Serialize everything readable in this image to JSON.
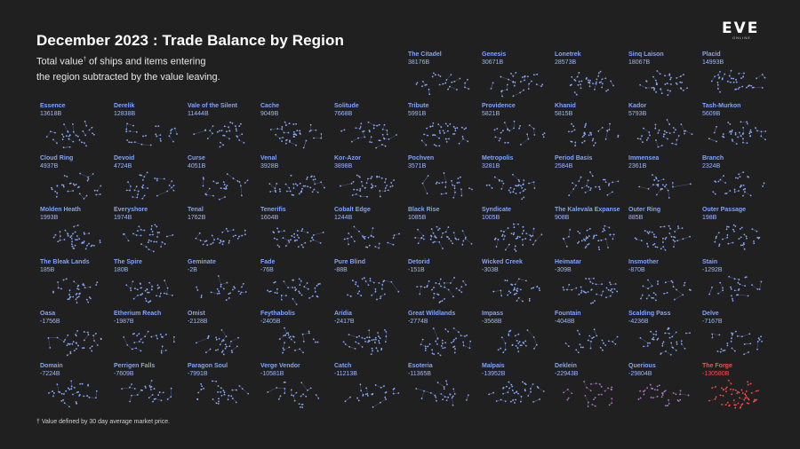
{
  "header": {
    "title": "December 2023 : Trade Balance by Region",
    "subtitle_line1_pre": "Total value",
    "subtitle_sup": "†",
    "subtitle_line1_post": " of ships and items entering",
    "subtitle_line2": "the region subtracted by the value leaving."
  },
  "logo": {
    "text": "EVE",
    "subtext": "ONLINE"
  },
  "footnote": "† Value defined by 30 day average market price.",
  "colors": {
    "background": "#202020",
    "positive_label": "#7fa3ff",
    "node_positive": "#8aa8ff",
    "node_negative_strong": "#b07acc",
    "highlight": "#ff4d4d"
  },
  "chart_data": {
    "type": "small_multiples",
    "unit": "B ISK",
    "regions": [
      {
        "name": "The Citadel",
        "label": "38176B",
        "value": 38176
      },
      {
        "name": "Genesis",
        "label": "30671B",
        "value": 30671
      },
      {
        "name": "Lonetrek",
        "label": "28573B",
        "value": 28573
      },
      {
        "name": "Sinq Laison",
        "label": "18067B",
        "value": 18067
      },
      {
        "name": "Placid",
        "label": "14993B",
        "value": 14993
      },
      {
        "name": "Essence",
        "label": "13618B",
        "value": 13618
      },
      {
        "name": "Derelik",
        "label": "12838B",
        "value": 12838
      },
      {
        "name": "Vale of the Silent",
        "label": "11444B",
        "value": 11444
      },
      {
        "name": "Cache",
        "label": "9049B",
        "value": 9049
      },
      {
        "name": "Solitude",
        "label": "7668B",
        "value": 7668
      },
      {
        "name": "Tribute",
        "label": "5991B",
        "value": 5991
      },
      {
        "name": "Providence",
        "label": "5821B",
        "value": 5821
      },
      {
        "name": "Khanid",
        "label": "5815B",
        "value": 5815
      },
      {
        "name": "Kador",
        "label": "5793B",
        "value": 5793
      },
      {
        "name": "Tash-Murkon",
        "label": "5609B",
        "value": 5609
      },
      {
        "name": "Cloud Ring",
        "label": "4937B",
        "value": 4937
      },
      {
        "name": "Devoid",
        "label": "4724B",
        "value": 4724
      },
      {
        "name": "Curse",
        "label": "4051B",
        "value": 4051
      },
      {
        "name": "Venal",
        "label": "3928B",
        "value": 3928
      },
      {
        "name": "Kor-Azor",
        "label": "3898B",
        "value": 3898
      },
      {
        "name": "Pochven",
        "label": "3571B",
        "value": 3571
      },
      {
        "name": "Metropolis",
        "label": "3281B",
        "value": 3281
      },
      {
        "name": "Period Basis",
        "label": "2584B",
        "value": 2584
      },
      {
        "name": "Immensea",
        "label": "2361B",
        "value": 2361
      },
      {
        "name": "Branch",
        "label": "2324B",
        "value": 2324
      },
      {
        "name": "Molden Heath",
        "label": "1993B",
        "value": 1993
      },
      {
        "name": "Everyshore",
        "label": "1974B",
        "value": 1974
      },
      {
        "name": "Tenal",
        "label": "1762B",
        "value": 1762
      },
      {
        "name": "Tenerifis",
        "label": "1604B",
        "value": 1604
      },
      {
        "name": "Cobalt Edge",
        "label": "1244B",
        "value": 1244
      },
      {
        "name": "Black Rise",
        "label": "1085B",
        "value": 1085
      },
      {
        "name": "Syndicate",
        "label": "1005B",
        "value": 1005
      },
      {
        "name": "The Kalevala Expanse",
        "label": "908B",
        "value": 908
      },
      {
        "name": "Outer Ring",
        "label": "885B",
        "value": 885
      },
      {
        "name": "Outer Passage",
        "label": "198B",
        "value": 198
      },
      {
        "name": "The Bleak Lands",
        "label": "185B",
        "value": 185
      },
      {
        "name": "The Spire",
        "label": "180B",
        "value": 180
      },
      {
        "name": "Geminate",
        "label": "-2B",
        "value": -2
      },
      {
        "name": "Fade",
        "label": "-76B",
        "value": -76
      },
      {
        "name": "Pure Blind",
        "label": "-88B",
        "value": -88
      },
      {
        "name": "Detorid",
        "label": "-151B",
        "value": -151
      },
      {
        "name": "Wicked Creek",
        "label": "-303B",
        "value": -303
      },
      {
        "name": "Heimatar",
        "label": "-309B",
        "value": -309
      },
      {
        "name": "Insmother",
        "label": "-870B",
        "value": -870
      },
      {
        "name": "Stain",
        "label": "-1292B",
        "value": -1292
      },
      {
        "name": "Oasa",
        "label": "-1756B",
        "value": -1756
      },
      {
        "name": "Etherium Reach",
        "label": "-1987B",
        "value": -1987
      },
      {
        "name": "Omist",
        "label": "-2128B",
        "value": -2128
      },
      {
        "name": "Feythabolis",
        "label": "-2405B",
        "value": -2405
      },
      {
        "name": "Aridia",
        "label": "-2417B",
        "value": -2417
      },
      {
        "name": "Great Wildlands",
        "label": "-2774B",
        "value": -2774
      },
      {
        "name": "Impass",
        "label": "-3568B",
        "value": -3568
      },
      {
        "name": "Fountain",
        "label": "-4048B",
        "value": -4048
      },
      {
        "name": "Scalding Pass",
        "label": "-4236B",
        "value": -4236
      },
      {
        "name": "Delve",
        "label": "-7167B",
        "value": -7167
      },
      {
        "name": "Domain",
        "label": "-7224B",
        "value": -7224
      },
      {
        "name": "Perrigen Falls",
        "label": "-7609B",
        "value": -7609
      },
      {
        "name": "Paragon Soul",
        "label": "-7991B",
        "value": -7991
      },
      {
        "name": "Verge Vendor",
        "label": "-10581B",
        "value": -10581
      },
      {
        "name": "Catch",
        "label": "-11213B",
        "value": -11213
      },
      {
        "name": "Esoteria",
        "label": "-11365B",
        "value": -11365
      },
      {
        "name": "Malpais",
        "label": "-13952B",
        "value": -13952
      },
      {
        "name": "Deklein",
        "label": "-22943B",
        "value": -22943
      },
      {
        "name": "Querious",
        "label": "-29804B",
        "value": -29804
      },
      {
        "name": "The Forge",
        "label": "-130580B",
        "value": -130580,
        "highlight": true
      }
    ]
  }
}
